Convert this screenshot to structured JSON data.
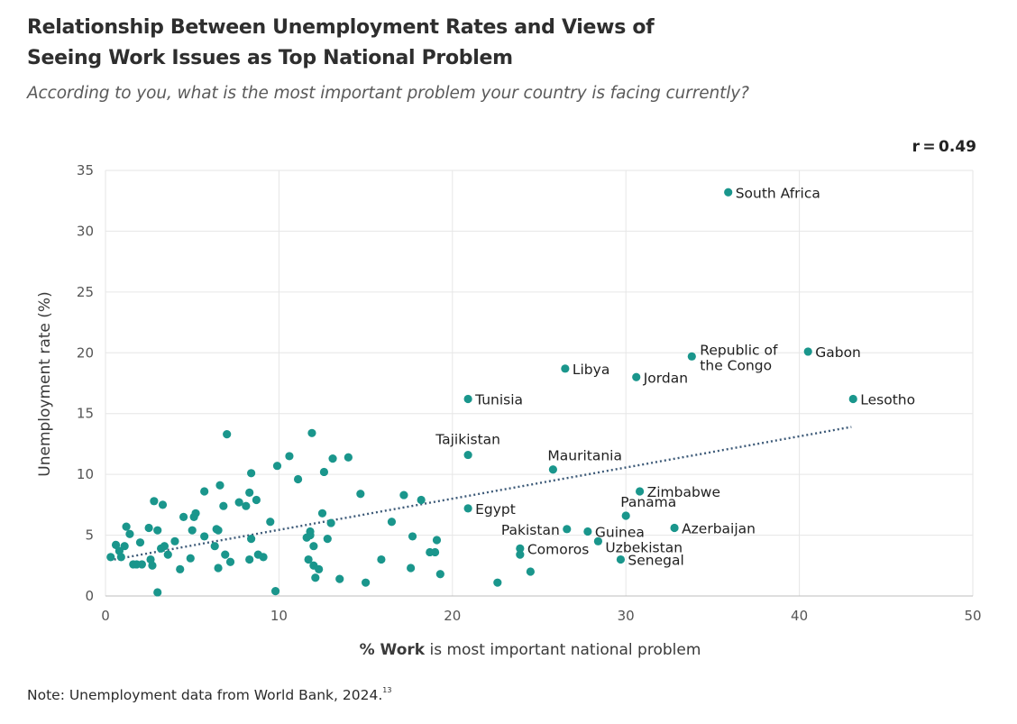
{
  "title_line1": "Relationship Between Unemployment Rates and Views of",
  "title_line2": "Seeing Work Issues as Top National Problem",
  "subtitle": "According to you, what is the most important problem your country is facing currently?",
  "r_label": "r = 0.49",
  "note_text": "Note: Unemployment data from World Bank, 2024.",
  "note_ref": "13",
  "colors": {
    "dot": "#1a968c",
    "trend": "#3d5a78",
    "grid": "#e6e6e6",
    "text": "#2b2b2b"
  },
  "chart_data": {
    "type": "scatter",
    "title": "Relationship Between Unemployment Rates and Views of Seeing Work Issues as Top National Problem",
    "xlabel_bold": "% Work",
    "xlabel_rest": " is most important national problem",
    "ylabel": "Unemployment rate (%)",
    "xlim": [
      0,
      50
    ],
    "ylim": [
      0,
      35
    ],
    "xticks": [
      0,
      10,
      20,
      30,
      40,
      50
    ],
    "yticks": [
      0,
      5,
      10,
      15,
      20,
      25,
      30,
      35
    ],
    "grid": true,
    "correlation": 0.49,
    "trendline": {
      "x": [
        0.5,
        43
      ],
      "y": [
        3.0,
        13.9
      ]
    },
    "labeled_points": [
      {
        "label": "South Africa",
        "x": 35.9,
        "y": 33.2,
        "pos": "right"
      },
      {
        "label": "Gabon",
        "x": 40.5,
        "y": 20.1,
        "pos": "right"
      },
      {
        "label": "Republic of the Congo",
        "label_lines": [
          "Republic of",
          "the Congo"
        ],
        "x": 33.8,
        "y": 19.7,
        "pos": "right2"
      },
      {
        "label": "Libya",
        "x": 26.5,
        "y": 18.7,
        "pos": "right"
      },
      {
        "label": "Jordan",
        "x": 30.6,
        "y": 18.0,
        "pos": "right"
      },
      {
        "label": "Tunisia",
        "x": 20.9,
        "y": 16.2,
        "pos": "right"
      },
      {
        "label": "Lesotho",
        "x": 43.1,
        "y": 16.2,
        "pos": "right"
      },
      {
        "label": "Tajikistan",
        "x": 20.9,
        "y": 11.6,
        "pos": "above"
      },
      {
        "label": "Mauritania",
        "x": 25.8,
        "y": 10.4,
        "pos": "aboveright"
      },
      {
        "label": "Zimbabwe",
        "x": 30.8,
        "y": 8.6,
        "pos": "right"
      },
      {
        "label": "Egypt",
        "x": 20.9,
        "y": 7.2,
        "pos": "right"
      },
      {
        "label": "Panama",
        "x": 30.0,
        "y": 6.6,
        "pos": "aboveright"
      },
      {
        "label": "Pakistan",
        "x": 26.6,
        "y": 5.5,
        "pos": "left"
      },
      {
        "label": "Guinea",
        "x": 27.8,
        "y": 5.3,
        "pos": "right"
      },
      {
        "label": "Azerbaijan",
        "x": 32.8,
        "y": 5.6,
        "pos": "right"
      },
      {
        "label": "Uzbekistan",
        "x": 28.4,
        "y": 4.5,
        "pos": "belowright"
      },
      {
        "label": "Comoros",
        "x": 23.9,
        "y": 3.9,
        "pos": "right"
      },
      {
        "label": "Senegal",
        "x": 29.7,
        "y": 3.0,
        "pos": "right"
      }
    ],
    "points": [
      [
        0.3,
        3.2
      ],
      [
        0.6,
        4.2
      ],
      [
        0.8,
        3.7
      ],
      [
        0.9,
        3.2
      ],
      [
        1.1,
        4.1
      ],
      [
        1.2,
        5.7
      ],
      [
        1.4,
        5.1
      ],
      [
        1.6,
        2.6
      ],
      [
        1.8,
        2.6
      ],
      [
        2.0,
        4.4
      ],
      [
        2.1,
        2.6
      ],
      [
        2.5,
        5.6
      ],
      [
        2.6,
        3.0
      ],
      [
        2.7,
        2.5
      ],
      [
        2.8,
        7.8
      ],
      [
        3.0,
        5.4
      ],
      [
        3.0,
        0.3
      ],
      [
        3.2,
        3.9
      ],
      [
        3.3,
        7.5
      ],
      [
        3.4,
        4.1
      ],
      [
        3.6,
        3.4
      ],
      [
        4.0,
        4.5
      ],
      [
        4.3,
        2.2
      ],
      [
        4.5,
        6.5
      ],
      [
        4.9,
        3.1
      ],
      [
        5.0,
        5.4
      ],
      [
        5.1,
        6.5
      ],
      [
        5.2,
        6.8
      ],
      [
        5.7,
        8.6
      ],
      [
        5.7,
        4.9
      ],
      [
        6.3,
        4.1
      ],
      [
        6.4,
        5.5
      ],
      [
        6.5,
        2.3
      ],
      [
        6.5,
        5.4
      ],
      [
        6.6,
        9.1
      ],
      [
        6.8,
        7.4
      ],
      [
        6.9,
        3.4
      ],
      [
        7.0,
        13.3
      ],
      [
        7.2,
        2.8
      ],
      [
        7.7,
        7.7
      ],
      [
        8.1,
        7.4
      ],
      [
        8.3,
        3.0
      ],
      [
        8.3,
        8.5
      ],
      [
        8.4,
        4.7
      ],
      [
        8.4,
        10.1
      ],
      [
        8.7,
        7.9
      ],
      [
        8.8,
        3.4
      ],
      [
        9.1,
        3.2
      ],
      [
        9.5,
        6.1
      ],
      [
        9.8,
        0.4
      ],
      [
        9.9,
        10.7
      ],
      [
        10.6,
        11.5
      ],
      [
        11.1,
        9.6
      ],
      [
        11.6,
        4.8
      ],
      [
        11.7,
        3.0
      ],
      [
        11.8,
        5.3
      ],
      [
        11.8,
        5.0
      ],
      [
        11.9,
        13.4
      ],
      [
        12.0,
        2.5
      ],
      [
        12.0,
        4.1
      ],
      [
        12.1,
        1.5
      ],
      [
        12.3,
        2.2
      ],
      [
        12.5,
        6.8
      ],
      [
        12.6,
        10.2
      ],
      [
        12.8,
        4.7
      ],
      [
        13.0,
        6.0
      ],
      [
        13.1,
        11.3
      ],
      [
        13.5,
        1.4
      ],
      [
        14.0,
        11.4
      ],
      [
        14.7,
        8.4
      ],
      [
        15.0,
        1.1
      ],
      [
        15.9,
        3.0
      ],
      [
        16.5,
        6.1
      ],
      [
        17.2,
        8.3
      ],
      [
        17.6,
        2.3
      ],
      [
        17.7,
        4.9
      ],
      [
        18.2,
        7.9
      ],
      [
        18.7,
        3.6
      ],
      [
        19.0,
        3.6
      ],
      [
        19.1,
        4.6
      ],
      [
        19.3,
        1.8
      ],
      [
        22.6,
        1.1
      ],
      [
        23.9,
        3.4
      ],
      [
        24.5,
        2.0
      ]
    ]
  }
}
